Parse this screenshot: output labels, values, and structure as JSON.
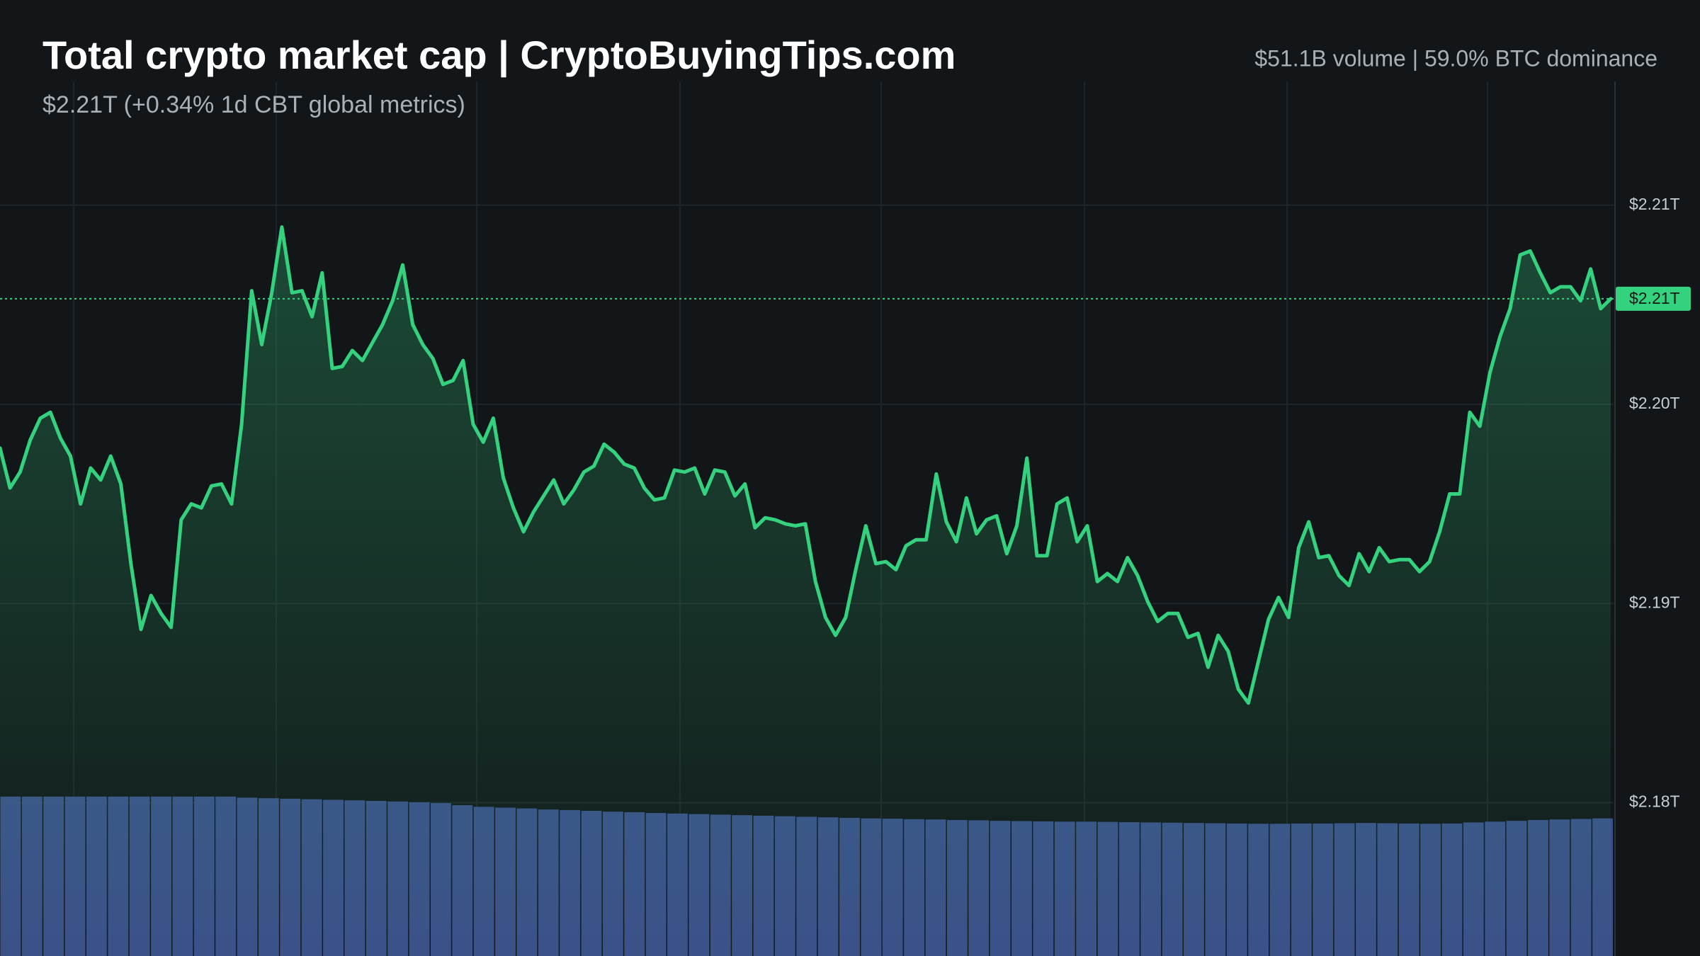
{
  "chart_data": {
    "type": "line",
    "title": "Total crypto market cap | CryptoBuyingTips.com",
    "subtitle": "$2.21T (+0.34% 1d CBT global metrics)",
    "stats": "$51.1B volume | 59.0% BTC dominance",
    "color": "#34d27f",
    "grid": true,
    "ylim": [
      2.1723,
      2.2203
    ],
    "yticks": [
      {
        "value": 2.21,
        "label": "$2.21T"
      },
      {
        "value": 2.2,
        "label": "$2.20T"
      },
      {
        "value": 2.19,
        "label": "$2.19T"
      },
      {
        "value": 2.18,
        "label": "$2.18T"
      }
    ],
    "current_price": {
      "value": 2.2053,
      "label": "$2.21T"
    },
    "values": [
      2.1978,
      2.1958,
      2.1966,
      2.1982,
      2.1993,
      2.1996,
      2.1983,
      2.1974,
      2.195,
      2.1968,
      2.1962,
      2.1974,
      2.196,
      2.192,
      2.1887,
      2.1904,
      2.1895,
      2.1888,
      2.1942,
      2.195,
      2.1948,
      2.1959,
      2.196,
      2.195,
      2.199,
      2.2057,
      2.203,
      2.2056,
      2.2089,
      2.2056,
      2.2057,
      2.2044,
      2.2066,
      2.2018,
      2.2019,
      2.2027,
      2.2022,
      2.2031,
      2.204,
      2.2052,
      2.207,
      2.204,
      2.203,
      2.2023,
      2.201,
      2.2012,
      2.2022,
      2.199,
      2.1981,
      2.1993,
      2.1963,
      2.1948,
      2.1936,
      2.1946,
      2.1954,
      2.1962,
      2.195,
      2.1957,
      2.1966,
      2.1969,
      2.198,
      2.1976,
      2.197,
      2.1968,
      2.1958,
      2.1952,
      2.1953,
      2.1967,
      2.1966,
      2.1968,
      2.1955,
      2.1967,
      2.1966,
      2.1954,
      2.196,
      2.1938,
      2.1943,
      2.1942,
      2.194,
      2.1939,
      2.194,
      2.1911,
      2.1893,
      2.1884,
      2.1893,
      2.1917,
      2.1939,
      2.192,
      2.1921,
      2.1917,
      2.1929,
      2.1932,
      2.1932,
      2.1965,
      2.1941,
      2.1931,
      2.1953,
      2.1935,
      2.1942,
      2.1944,
      2.1925,
      2.1939,
      2.1973,
      2.1924,
      2.1924,
      2.195,
      2.1953,
      2.1931,
      2.1939,
      2.1911,
      2.1915,
      2.1911,
      2.1923,
      2.1914,
      2.1901,
      2.1891,
      2.1895,
      2.1895,
      2.1883,
      2.1885,
      2.1868,
      2.1884,
      2.1876,
      2.1857,
      2.185,
      2.1871,
      2.1892,
      2.1903,
      2.1893,
      2.1928,
      2.1941,
      2.1923,
      2.1924,
      2.1914,
      2.1909,
      2.1925,
      2.1916,
      2.1928,
      2.1921,
      2.1922,
      2.1922,
      2.1916,
      2.1921,
      2.1936,
      2.1955,
      2.1955,
      2.1996,
      2.1989,
      2.2016,
      2.2034,
      2.2048,
      2.2075,
      2.2077,
      2.2066,
      2.2056,
      2.2059,
      2.2059,
      2.2052,
      2.2068,
      2.2048,
      2.2053
    ],
    "volume": {
      "color": "#3a4f88",
      "ylim": [
        0,
        355
      ],
      "values": [
        59.2,
        59.2,
        59.2,
        59.2,
        59.2,
        59.2,
        59.2,
        59.2,
        59.2,
        59.2,
        59.2,
        58.8,
        58.6,
        58.4,
        58.2,
        58,
        57.8,
        57.6,
        57.4,
        57.1,
        56.8,
        56,
        55.4,
        55.1,
        54.8,
        54.4,
        54.2,
        53.9,
        53.6,
        53.4,
        53.1,
        52.9,
        52.7,
        52.5,
        52.3,
        52.1,
        51.9,
        51.7,
        51.5,
        51.3,
        51.1,
        51,
        50.8,
        50.7,
        50.5,
        50.4,
        50.2,
        50.1,
        50,
        49.9,
        49.9,
        49.8,
        49.7,
        49.6,
        49.5,
        49.4,
        49.3,
        49.2,
        49.1,
        49.1,
        49.2,
        49.2,
        49.3,
        49.4,
        49.3,
        49.2,
        49.1,
        49.2,
        49.6,
        49.9,
        50.2,
        50.5,
        50.7,
        50.9,
        51.1
      ]
    }
  }
}
